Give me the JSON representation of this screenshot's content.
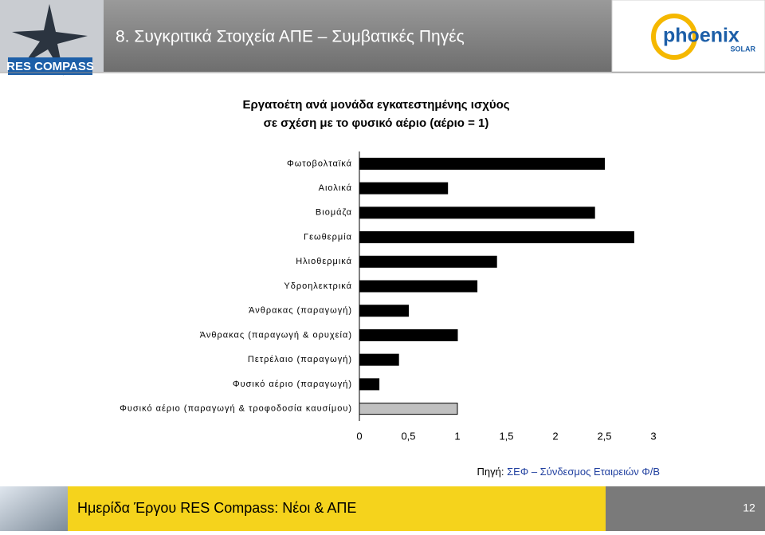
{
  "header": {
    "title": "8. Συγκριτικά Στοιχεία ΑΠΕ – Συμβατικές Πηγές",
    "left_logo": "RES COMPASS",
    "right_logo": "phoenix",
    "right_logo_sub": "SOLAR"
  },
  "chart_data": {
    "type": "bar",
    "orientation": "horizontal",
    "title": [
      "Εργατοέτη ανά μονάδα εγκατεστημένης ισχύος",
      "σε σχέση με το φυσικό αέριο (αέριο = 1)"
    ],
    "categories": [
      "Φωτοβολταϊκά",
      "Αιολικά",
      "Βιομάζα",
      "Γεωθερμία",
      "Ηλιοθερμικά",
      "Υδροηλεκτρικά",
      "Άνθρακας (παραγωγή)",
      "Άνθρακας (παραγωγή & ορυχεία)",
      "Πετρέλαιο (παραγωγή)",
      "Φυσικό αέριο (παραγωγή)",
      "Φυσικό αέριο (παραγωγή & τροφοδοσία καυσίμου)"
    ],
    "values": [
      2.5,
      0.9,
      2.4,
      2.8,
      1.4,
      1.2,
      0.5,
      1.0,
      0.4,
      0.2,
      1.0
    ],
    "colors": [
      "#000000",
      "#000000",
      "#000000",
      "#000000",
      "#000000",
      "#000000",
      "#000000",
      "#000000",
      "#000000",
      "#000000",
      "#c0c0c0"
    ],
    "xlim": [
      0,
      3
    ],
    "xticks": [
      0,
      {
        "value": 0.5,
        "label": "0,5"
      },
      1,
      {
        "value": 1.5,
        "label": "1,5"
      },
      2,
      {
        "value": 2.5,
        "label": "2,5"
      },
      3
    ],
    "grid": false
  },
  "source": {
    "label": "Πηγή:",
    "text": "ΣΕΦ – Σύνδεσμος Εταιρειών Φ/Β"
  },
  "footer": {
    "text": "Ημερίδα Έργου RES Compass: Νέοι & ΑΠΕ",
    "page": "12"
  }
}
